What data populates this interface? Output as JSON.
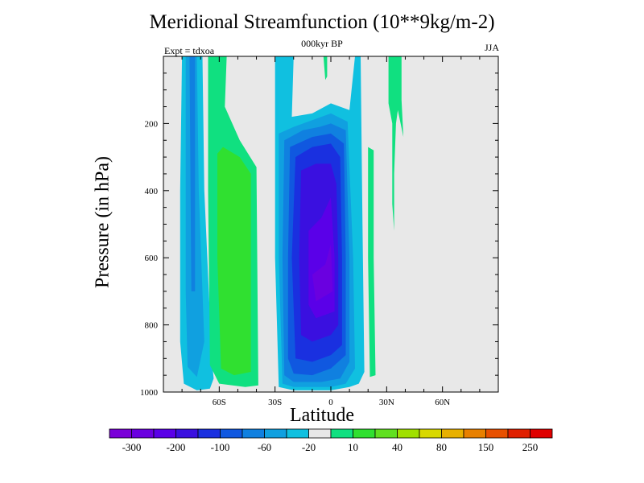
{
  "title": "Meridional Streamfunction (10**9kg/m-2)",
  "subtitle": "000kyr BP",
  "experiment_label": "Expt = tdxoa",
  "season_label": "JJA",
  "chart_data": {
    "type": "heatmap",
    "title": "Meridional Streamfunction (10**9kg/m-2)",
    "subtitle": "000kyr BP",
    "xlabel": "Latitude",
    "ylabel": "Pressure (in hPa)",
    "xlim": [
      -90,
      90
    ],
    "ylim": [
      0,
      1000
    ],
    "y_inverted": true,
    "x_ticks": [
      {
        "value": -60,
        "label": "60S"
      },
      {
        "value": -30,
        "label": "30S"
      },
      {
        "value": 0,
        "label": "0"
      },
      {
        "value": 30,
        "label": "30N"
      },
      {
        "value": 60,
        "label": "60N"
      }
    ],
    "y_ticks": [
      {
        "value": 200,
        "label": "200"
      },
      {
        "value": 400,
        "label": "400"
      },
      {
        "value": 600,
        "label": "600"
      },
      {
        "value": 800,
        "label": "800"
      },
      {
        "value": 1000,
        "label": "1000"
      }
    ],
    "background_color": "#e8e8e8",
    "colorbar": {
      "colors": [
        "#7a00d8",
        "#6a00e0",
        "#5a00e8",
        "#3a10e0",
        "#1a30e0",
        "#1058e0",
        "#1080e0",
        "#10a0e0",
        "#10c0e0",
        "#e8e8e8",
        "#10e080",
        "#30e030",
        "#60e020",
        "#a0e000",
        "#d8d800",
        "#e8b000",
        "#e88000",
        "#e85000",
        "#e02000",
        "#e00000"
      ],
      "labels": [
        "-300",
        "-200",
        "-100",
        "-60",
        "-20",
        "10",
        "40",
        "80",
        "150",
        "250"
      ]
    },
    "regions": [
      {
        "name": "sh-band-outer",
        "value": -10,
        "color": "#10c0e0",
        "polygon": [
          [
            -80,
            0
          ],
          [
            -69,
            0
          ],
          [
            -68,
            400
          ],
          [
            -64,
            900
          ],
          [
            -63,
            960
          ],
          [
            -65,
            990
          ],
          [
            -72,
            995
          ],
          [
            -79,
            975
          ],
          [
            -81,
            850
          ],
          [
            -81,
            400
          ]
        ]
      },
      {
        "name": "sh-band-mid",
        "value": -20,
        "color": "#10a0e0",
        "polygon": [
          [
            -78,
            0
          ],
          [
            -72,
            0
          ],
          [
            -71,
            400
          ],
          [
            -68,
            850
          ],
          [
            -72,
            955
          ],
          [
            -77,
            925
          ],
          [
            -78,
            700
          ]
        ]
      },
      {
        "name": "sh-band-core",
        "value": -40,
        "color": "#1080e0",
        "polygon": [
          [
            -76,
            0
          ],
          [
            -73,
            0
          ],
          [
            -73,
            700
          ],
          [
            -75,
            700
          ]
        ]
      },
      {
        "name": "sh-positive-outer",
        "value": 10,
        "color": "#10e080",
        "polygon": [
          [
            -66,
            0
          ],
          [
            -56,
            0
          ],
          [
            -57,
            150
          ],
          [
            -49,
            250
          ],
          [
            -40,
            330
          ],
          [
            -39,
            980
          ],
          [
            -46,
            985
          ],
          [
            -60,
            975
          ],
          [
            -65,
            920
          ],
          [
            -66,
            400
          ]
        ]
      },
      {
        "name": "sh-positive-core",
        "value": 40,
        "color": "#30e030",
        "polygon": [
          [
            -61,
            290
          ],
          [
            -58,
            270
          ],
          [
            -49,
            300
          ],
          [
            -43,
            350
          ],
          [
            -43,
            940
          ],
          [
            -52,
            950
          ],
          [
            -59,
            930
          ],
          [
            -61,
            600
          ]
        ]
      },
      {
        "name": "hadley-level-1",
        "value": -10,
        "color": "#10c0e0",
        "polygon": [
          [
            -30,
            0
          ],
          [
            -20,
            0
          ],
          [
            -21,
            180
          ],
          [
            -10,
            170
          ],
          [
            0,
            140
          ],
          [
            10,
            160
          ],
          [
            13,
            0
          ],
          [
            16,
            0
          ],
          [
            17,
            500
          ],
          [
            18,
            940
          ],
          [
            15,
            975
          ],
          [
            10,
            985
          ],
          [
            0,
            995
          ],
          [
            -20,
            995
          ],
          [
            -28,
            985
          ],
          [
            -30,
            600
          ]
        ]
      },
      {
        "name": "hadley-level-2",
        "value": -20,
        "color": "#10a0e0",
        "polygon": [
          [
            -28,
            230
          ],
          [
            -20,
            210
          ],
          [
            -10,
            190
          ],
          [
            0,
            170
          ],
          [
            9,
            195
          ],
          [
            12,
            600
          ],
          [
            13,
            930
          ],
          [
            8,
            975
          ],
          [
            0,
            985
          ],
          [
            -20,
            985
          ],
          [
            -26,
            975
          ],
          [
            -28,
            600
          ]
        ]
      },
      {
        "name": "hadley-level-3",
        "value": -40,
        "color": "#1080e0",
        "polygon": [
          [
            -25,
            250
          ],
          [
            -15,
            220
          ],
          [
            -6,
            210
          ],
          [
            0,
            200
          ],
          [
            8,
            220
          ],
          [
            10,
            600
          ],
          [
            10,
            910
          ],
          [
            5,
            960
          ],
          [
            -5,
            970
          ],
          [
            -20,
            970
          ],
          [
            -25,
            950
          ],
          [
            -26,
            600
          ]
        ]
      },
      {
        "name": "hadley-level-4",
        "value": -60,
        "color": "#1058e0",
        "polygon": [
          [
            -22,
            270
          ],
          [
            -10,
            240
          ],
          [
            0,
            230
          ],
          [
            7,
            260
          ],
          [
            8,
            600
          ],
          [
            8,
            890
          ],
          [
            0,
            930
          ],
          [
            -10,
            950
          ],
          [
            -20,
            945
          ],
          [
            -23,
            900
          ],
          [
            -23,
            600
          ]
        ]
      },
      {
        "name": "hadley-level-5",
        "value": -80,
        "color": "#1a30e0",
        "polygon": [
          [
            -19,
            300
          ],
          [
            -10,
            270
          ],
          [
            0,
            260
          ],
          [
            5,
            300
          ],
          [
            6,
            600
          ],
          [
            6,
            860
          ],
          [
            0,
            890
          ],
          [
            -10,
            910
          ],
          [
            -19,
            900
          ],
          [
            -21,
            600
          ]
        ]
      },
      {
        "name": "hadley-level-6",
        "value": -100,
        "color": "#3a10e0",
        "polygon": [
          [
            -16,
            340
          ],
          [
            -8,
            320
          ],
          [
            0,
            320
          ],
          [
            3,
            380
          ],
          [
            4,
            600
          ],
          [
            4,
            800
          ],
          [
            0,
            830
          ],
          [
            -10,
            850
          ],
          [
            -16,
            830
          ],
          [
            -17,
            600
          ]
        ]
      },
      {
        "name": "hadley-level-7",
        "value": -150,
        "color": "#5a00e8",
        "polygon": [
          [
            -12,
            520
          ],
          [
            -5,
            480
          ],
          [
            0,
            420
          ],
          [
            2,
            600
          ],
          [
            2,
            760
          ],
          [
            -8,
            780
          ],
          [
            -12,
            740
          ]
        ]
      },
      {
        "name": "hadley-level-8",
        "value": -200,
        "color": "#6a00e0",
        "polygon": [
          [
            -10,
            650
          ],
          [
            -3,
            620
          ],
          [
            0,
            560
          ],
          [
            1,
            700
          ],
          [
            -8,
            730
          ]
        ]
      },
      {
        "name": "nh-positive-lower",
        "value": 10,
        "color": "#10e080",
        "polygon": [
          [
            20,
            270
          ],
          [
            23,
            280
          ],
          [
            23,
            600
          ],
          [
            24,
            950
          ],
          [
            21,
            955
          ],
          [
            20,
            600
          ]
        ]
      },
      {
        "name": "nh-positive-upper",
        "value": 10,
        "color": "#10e080",
        "polygon": [
          [
            31,
            0
          ],
          [
            38,
            0
          ],
          [
            38,
            130
          ],
          [
            39,
            240
          ],
          [
            36,
            160
          ],
          [
            35,
            200
          ],
          [
            34,
            350
          ],
          [
            34,
            520
          ],
          [
            33,
            440
          ],
          [
            33,
            200
          ],
          [
            31,
            140
          ]
        ]
      },
      {
        "name": "top-positive-sliver",
        "value": 10,
        "color": "#10e080",
        "polygon": [
          [
            -4,
            0
          ],
          [
            -2,
            0
          ],
          [
            -2,
            60
          ],
          [
            -3,
            70
          ]
        ]
      }
    ]
  }
}
